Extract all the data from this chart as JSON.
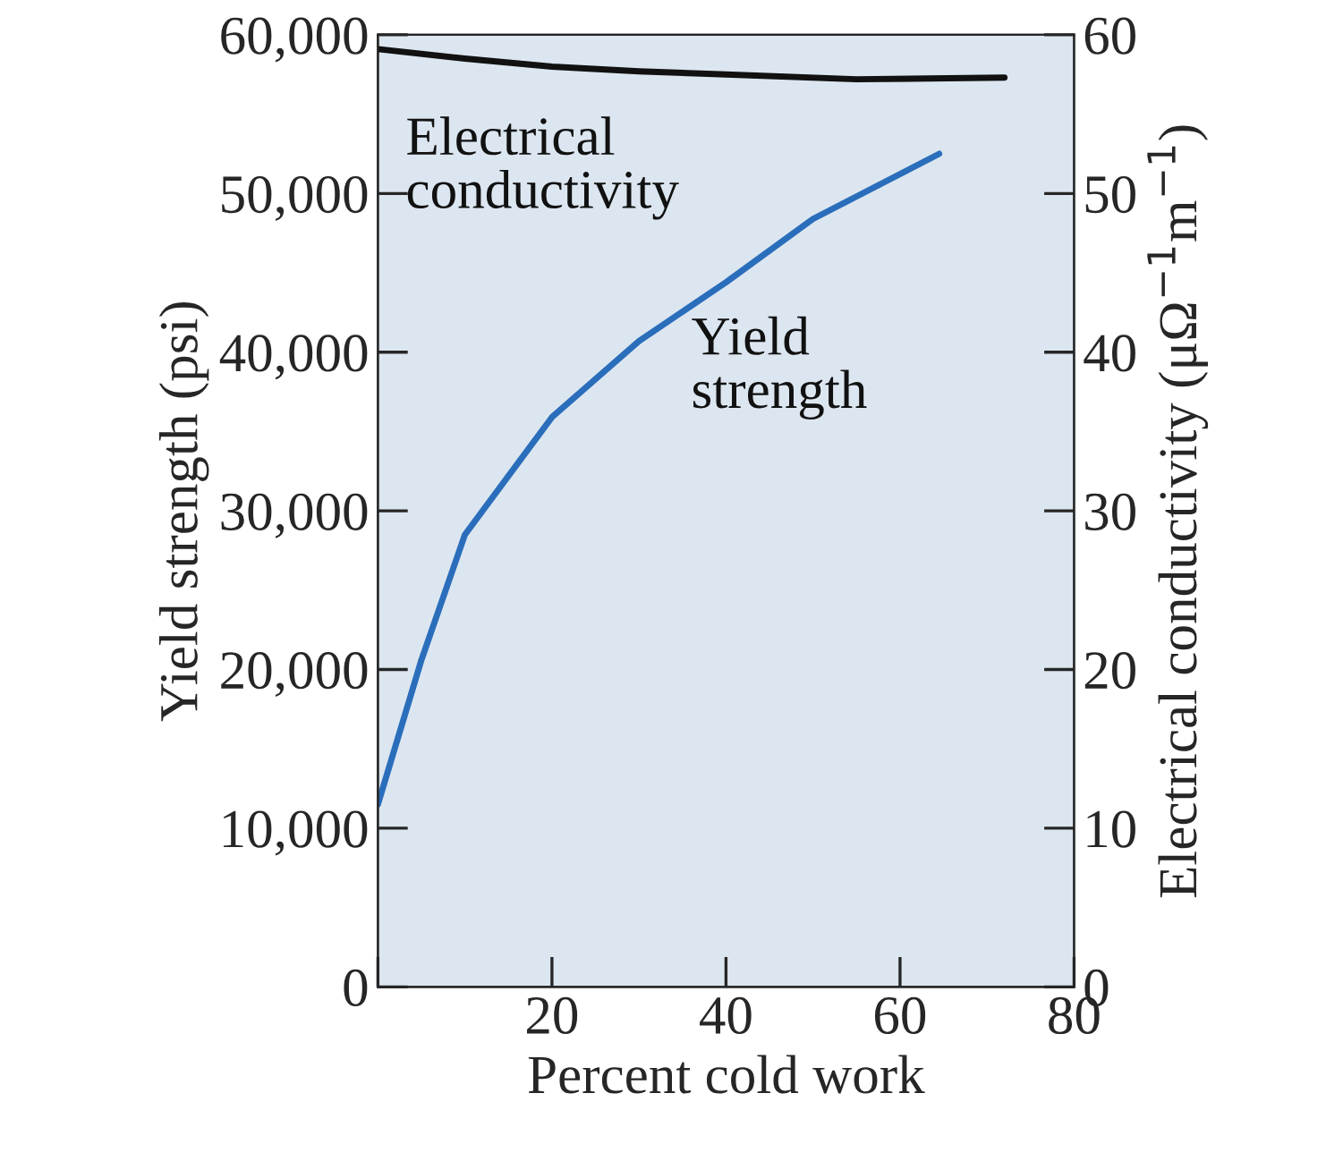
{
  "chart_data": {
    "type": "line",
    "xlabel": "Percent cold work",
    "ylabel": "Yield strength (psi)",
    "y2label": "Electrical conductivity (μΩ$^{−1}$m$^{−1}$)",
    "xlim": [
      0,
      80
    ],
    "xticks": [
      {
        "value": 0,
        "label": null
      },
      20,
      40,
      60,
      80
    ],
    "ylim": [
      0,
      60000
    ],
    "yticks": [
      0,
      {
        "value": 10000,
        "label": "10,000"
      },
      {
        "value": 20000,
        "label": "20,000"
      },
      {
        "value": 30000,
        "label": "30,000"
      },
      {
        "value": 40000,
        "label": "40,000"
      },
      {
        "value": 50000,
        "label": "50,000"
      },
      {
        "value": 60000,
        "label": "60,000"
      }
    ],
    "y2lim": [
      0,
      60
    ],
    "y2ticks": [
      0,
      10,
      20,
      30,
      40,
      50,
      60
    ],
    "grid": false,
    "legend": false,
    "series": [
      {
        "name": "Yield\nstrength",
        "color": "#2a6ebb",
        "x": [
          0,
          5,
          10,
          20,
          30,
          40,
          50,
          64.5
        ],
        "values": [
          11500,
          20600,
          28500,
          35900,
          40700,
          44400,
          48400,
          52500
        ]
      },
      {
        "name": "Electrical\nconductivity",
        "color": "#111111",
        "axis": "y2",
        "x": [
          0,
          10,
          20,
          30,
          40,
          55,
          72
        ],
        "values": [
          59.1,
          58.5,
          58.0,
          57.7,
          57.5,
          57.2,
          57.3
        ]
      }
    ]
  }
}
